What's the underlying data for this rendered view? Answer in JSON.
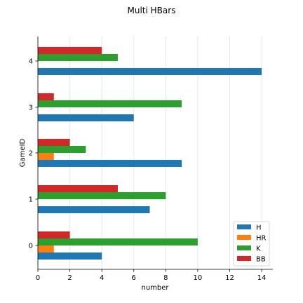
{
  "chart_data": {
    "type": "bar",
    "orientation": "horizontal",
    "title": "Multi HBars",
    "xlabel": "number",
    "ylabel": "GameID",
    "categories": [
      "0",
      "1",
      "2",
      "3",
      "4"
    ],
    "series": [
      {
        "name": "H",
        "color": "#1f77b4",
        "values": [
          4,
          7,
          9,
          6,
          14
        ]
      },
      {
        "name": "HR",
        "color": "#ff7f0e",
        "values": [
          1,
          0,
          1,
          0,
          0
        ]
      },
      {
        "name": "K",
        "color": "#2ca02c",
        "values": [
          10,
          8,
          3,
          9,
          5
        ]
      },
      {
        "name": "BB",
        "color": "#d62728",
        "values": [
          2,
          5,
          2,
          1,
          4
        ]
      }
    ],
    "xlim": [
      0,
      14.7
    ],
    "xticks": [
      0,
      2,
      4,
      6,
      8,
      10,
      12,
      14
    ],
    "grid": "x",
    "legend": "lower-right"
  }
}
